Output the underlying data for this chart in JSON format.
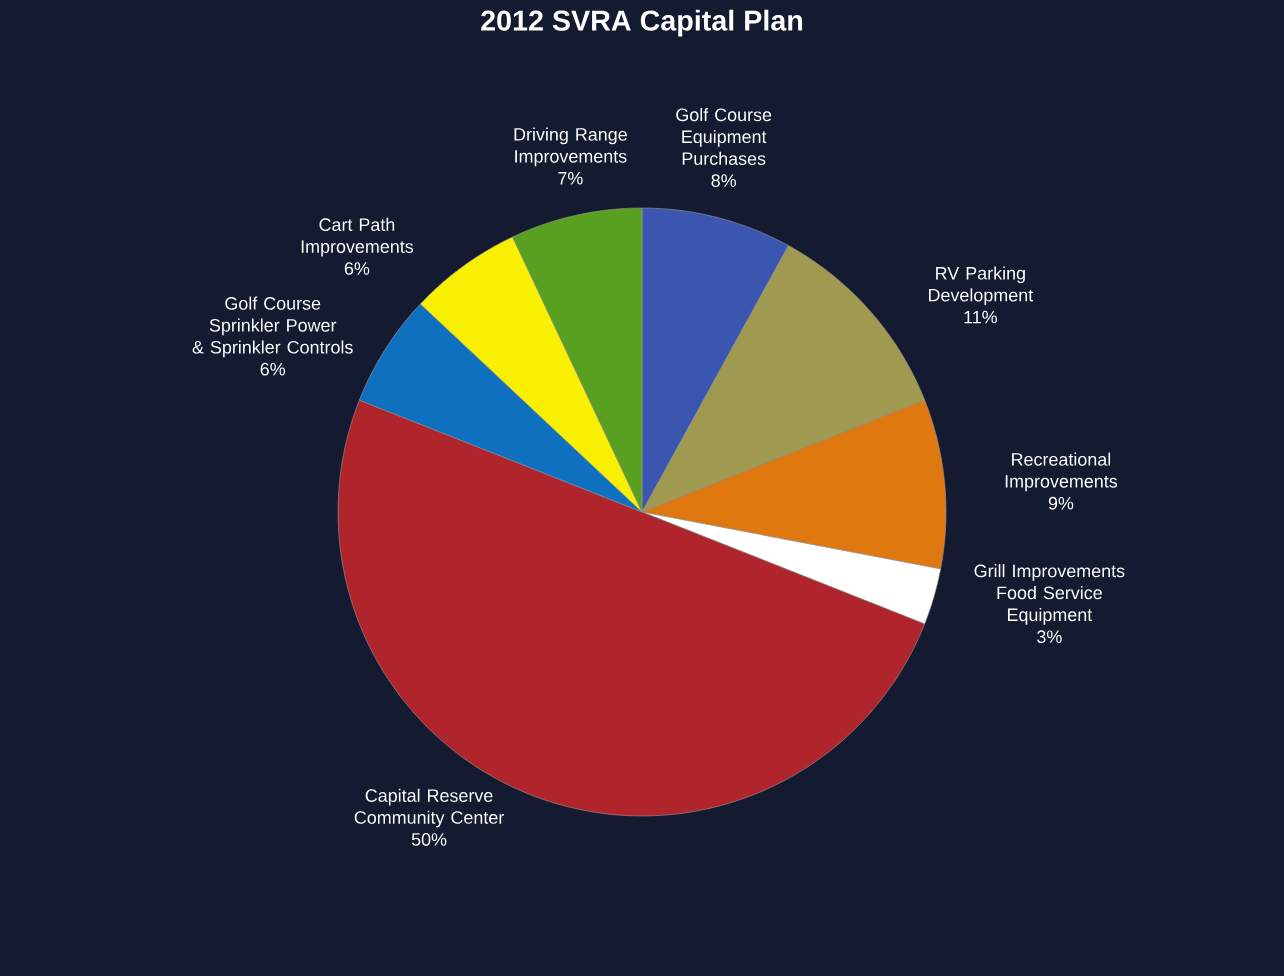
{
  "chart_data": {
    "type": "pie",
    "title": "2012 SVRA Capital Plan",
    "categories": [
      "Golf Course Equipment Purchases",
      "RV Parking Development",
      "Recreational Improvements",
      "Grill Improvements Food Service Equipment",
      "Capital Reserve Community Center",
      "Golf Course Sprinkler Power & Sprinkler Controls",
      "Cart Path Improvements",
      "Driving Range Improvements"
    ],
    "values": [
      8,
      11,
      9,
      3,
      50,
      6,
      6,
      7
    ],
    "value_labels": [
      "8%",
      "11%",
      "9%",
      "3%",
      "50%",
      "6%",
      "6%",
      "7%"
    ],
    "colors": [
      "#3a56b0",
      "#a09a50",
      "#e07810",
      "#ffffff",
      "#b0242c",
      "#1070c0",
      "#f8f000",
      "#5aa020"
    ]
  }
}
